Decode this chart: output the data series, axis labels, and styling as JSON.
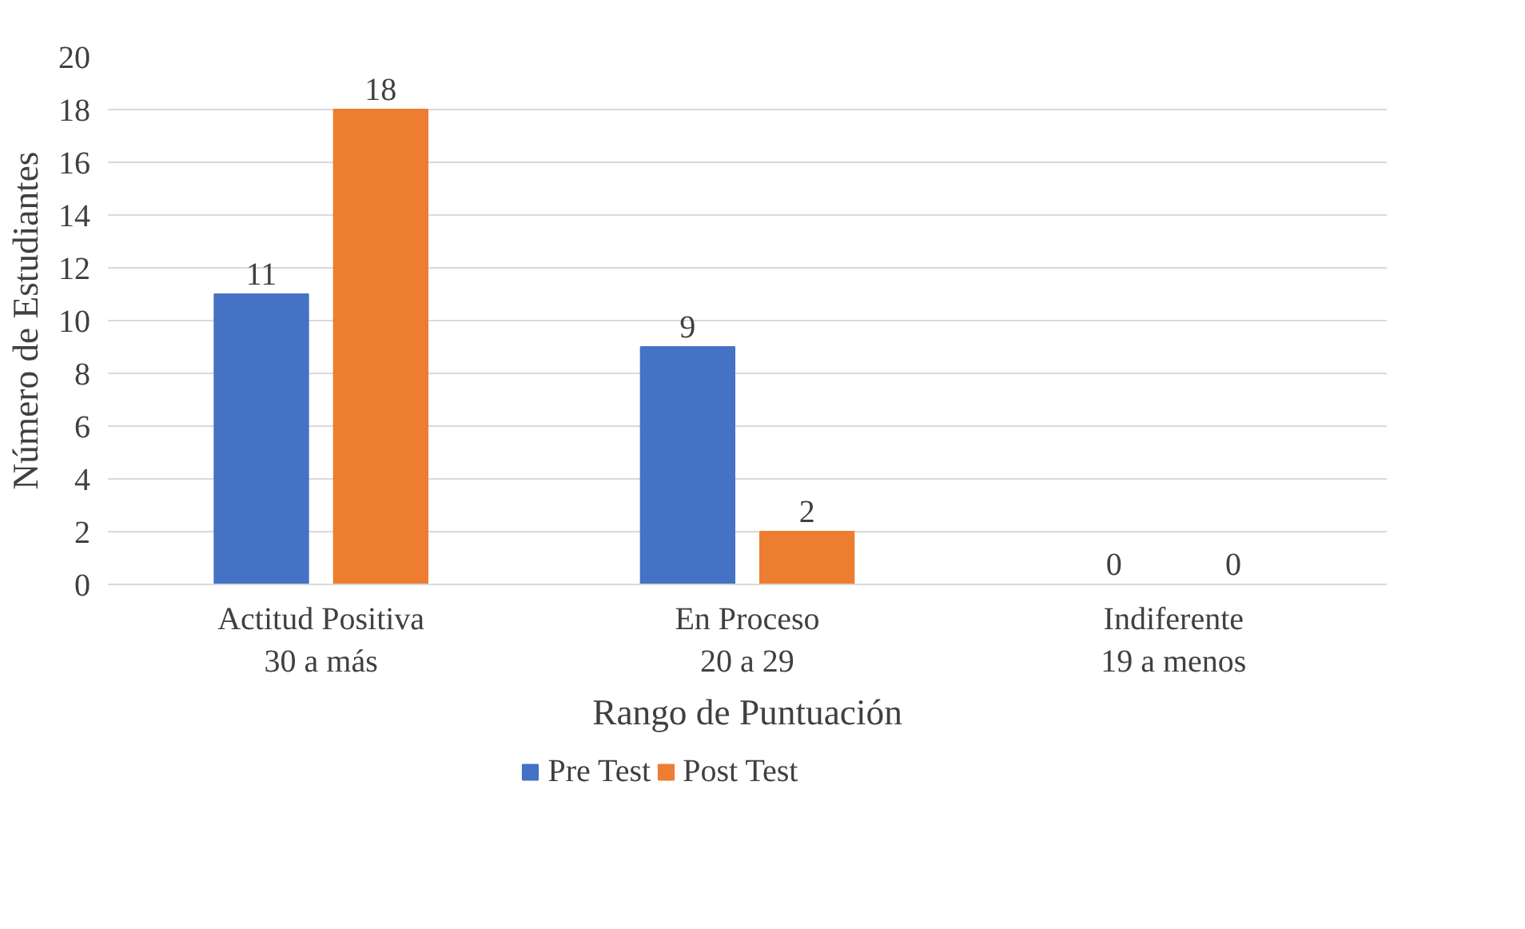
{
  "chart_data": {
    "type": "bar",
    "xlabel": "Rango de Puntuación",
    "ylabel": "Número de Estudiantes",
    "categories": [
      "Actitud Positiva\n30 a más",
      "En Proceso\n20 a 29",
      "Indiferente\n19 a menos"
    ],
    "series": [
      {
        "name": "Pre Test",
        "color": "#4472c4",
        "values": [
          11,
          9,
          0
        ]
      },
      {
        "name": "Post Test",
        "color": "#ed7d31",
        "values": [
          18,
          2,
          0
        ]
      }
    ],
    "ylim": [
      0,
      20
    ],
    "yticks": [
      0,
      2,
      4,
      6,
      8,
      10,
      12,
      14,
      16,
      18,
      20
    ],
    "grid": "y",
    "legend": "bottom",
    "data_labels": true
  }
}
